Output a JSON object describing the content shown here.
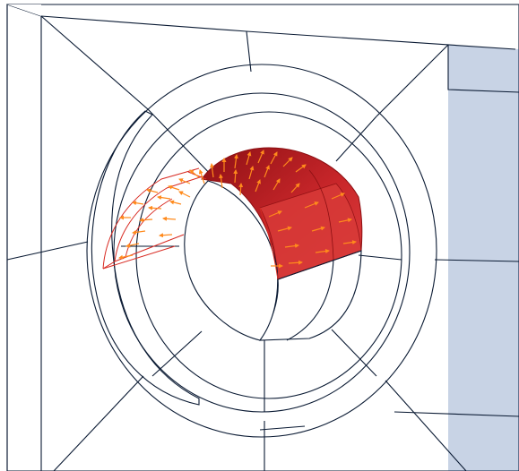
{
  "viewport": {
    "model_color": "#2d5fb0",
    "model_side_color": "#3a93f2",
    "model_dark_color": "#234e96",
    "edge_color": "#0a1a33",
    "hole_interior_color": "#ffffff",
    "load_surface_color": "#c8262a",
    "load_surface_edge_color": "#8c0f12",
    "load_outline_color": "#d82a22",
    "arrow_color": "#ff8a1c",
    "background_color": "#ffffff"
  }
}
